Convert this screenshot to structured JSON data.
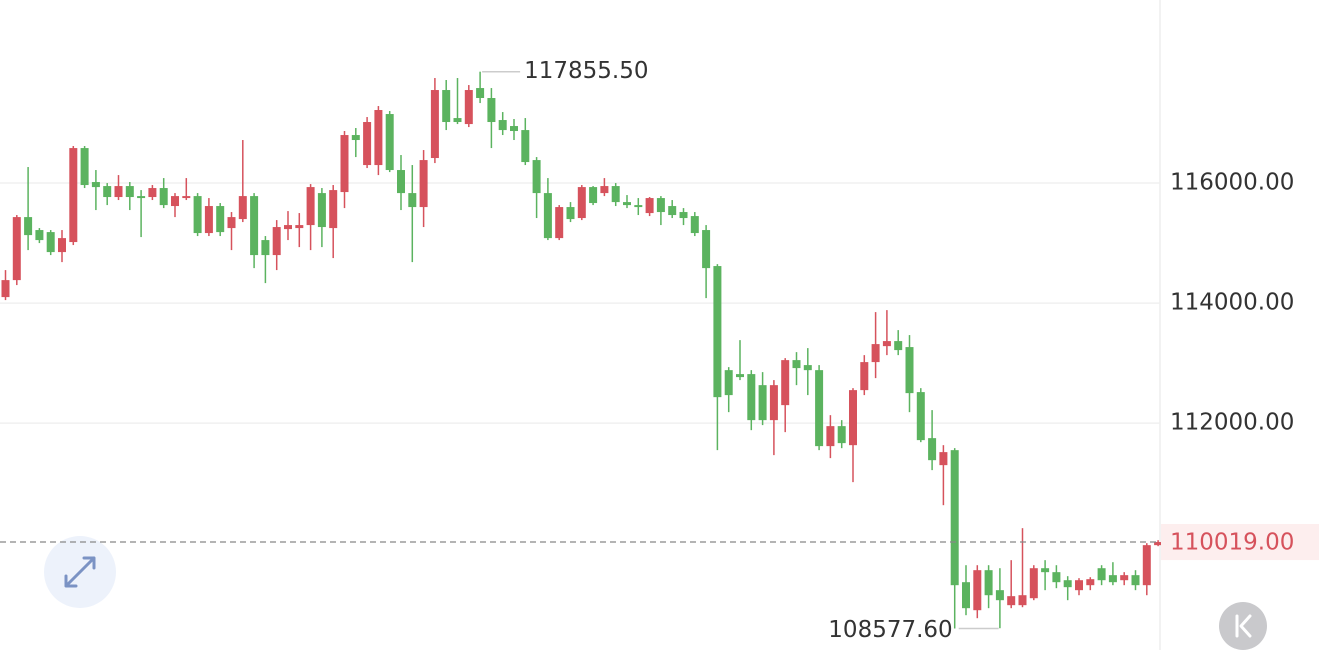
{
  "chart_data": {
    "type": "candlestick",
    "up_color": "#d6525c",
    "down_color": "#5bb35f",
    "ylim": [
      108220,
      119050
    ],
    "yticks": [
      {
        "value": 112000,
        "label": "112000.00"
      },
      {
        "value": 114000,
        "label": "114000.00"
      },
      {
        "value": 116000,
        "label": "116000.00"
      }
    ],
    "grid": true,
    "current_price": {
      "value": 110019,
      "label": "110019.00"
    },
    "high_marker": {
      "value": 117855.5,
      "label": "117855.50"
    },
    "low_marker": {
      "value": 108577.6,
      "label": "108577.60"
    },
    "open": [
      114100,
      114383,
      115433,
      115217,
      115183,
      114850,
      115017,
      116583,
      116017,
      115950,
      115767,
      115950,
      115783,
      115767,
      115917,
      115617,
      115750,
      115783,
      115167,
      115617,
      115250,
      115400,
      115783,
      115050,
      114800,
      115233,
      115250,
      115300,
      115833,
      115250,
      115850,
      116800,
      116300,
      116300,
      117150,
      116217,
      115833,
      115600,
      116417,
      117550,
      117083,
      116983,
      117583,
      117417,
      117050,
      116950,
      116883,
      116383,
      115833,
      115083,
      115600,
      115417,
      115933,
      115833,
      115950,
      115683,
      115633,
      115500,
      115750,
      115617,
      115517,
      115450,
      115217,
      114617,
      112883,
      112817,
      112817,
      112633,
      112050,
      112300,
      113050,
      112967,
      112883,
      111617,
      111950,
      111633,
      112550,
      113017,
      113283,
      113367,
      113267,
      112517,
      111750,
      111300,
      111550,
      109350,
      108883,
      109550,
      109217,
      108967,
      108967,
      109083,
      109583,
      109517,
      109383,
      109217,
      109300,
      109583,
      109467,
      109383,
      109467,
      109300,
      109967
    ],
    "high": [
      114550,
      115467,
      116267,
      115250,
      115217,
      115217,
      116617,
      116617,
      116217,
      116000,
      116133,
      116017,
      115883,
      115967,
      116083,
      115833,
      116083,
      115833,
      115750,
      115667,
      115517,
      116717,
      115833,
      115117,
      115383,
      115533,
      115500,
      115983,
      115917,
      115967,
      116867,
      116917,
      117100,
      117283,
      117200,
      116467,
      116300,
      116550,
      117750,
      117717,
      117750,
      117633,
      117855.5,
      117583,
      117183,
      117067,
      117083,
      116433,
      116083,
      115633,
      115683,
      115967,
      115950,
      116083,
      116000,
      115800,
      115750,
      115767,
      115783,
      115717,
      115583,
      115517,
      115300,
      114650,
      112933,
      113383,
      112883,
      112850,
      112717,
      113083,
      113183,
      113250,
      112967,
      112133,
      112050,
      112583,
      113133,
      113850,
      113883,
      113550,
      113467,
      112583,
      112217,
      111633,
      111583,
      109633,
      109633,
      109633,
      109583,
      109717,
      110250,
      109633,
      109717,
      109633,
      109450,
      109417,
      109433,
      109633,
      109683,
      109517,
      109550,
      110000,
      110050
    ],
    "low": [
      114050,
      114300,
      114883,
      115000,
      114800,
      114683,
      114967,
      115917,
      115550,
      115633,
      115717,
      115550,
      115100,
      115717,
      115583,
      115433,
      115717,
      115117,
      115117,
      115117,
      114883,
      115350,
      114583,
      114333,
      114550,
      115050,
      114933,
      114883,
      114933,
      114750,
      115583,
      116433,
      116250,
      116133,
      116183,
      115550,
      114683,
      115267,
      116333,
      116883,
      116983,
      116933,
      117333,
      116583,
      116800,
      116717,
      116300,
      115417,
      115050,
      115050,
      115350,
      115383,
      115633,
      115783,
      115617,
      115583,
      115467,
      115450,
      115300,
      115417,
      115300,
      115117,
      114083,
      111550,
      112183,
      112717,
      111883,
      111967,
      111467,
      111850,
      112633,
      112467,
      111550,
      111417,
      111583,
      111017,
      112467,
      112750,
      113133,
      113133,
      112183,
      111683,
      111217,
      110633,
      108577.6,
      108800,
      108750,
      108917,
      108583,
      108917,
      108933,
      109050,
      109217,
      109250,
      109050,
      109133,
      109217,
      109300,
      109300,
      109300,
      109217,
      109133,
      109950
    ],
    "close": [
      114383,
      115433,
      115133,
      115050,
      114850,
      115083,
      116583,
      115967,
      115933,
      115767,
      115950,
      115767,
      115750,
      115917,
      115633,
      115783,
      115783,
      115167,
      115617,
      115183,
      115433,
      115783,
      114800,
      114800,
      115267,
      115300,
      115300,
      115933,
      115267,
      115883,
      116800,
      116717,
      117017,
      117217,
      116217,
      115833,
      115600,
      116383,
      117550,
      117017,
      117017,
      117550,
      117417,
      117017,
      116883,
      116867,
      116350,
      115833,
      115083,
      115600,
      115400,
      115933,
      115667,
      115950,
      115683,
      115633,
      115600,
      115750,
      115517,
      115467,
      115417,
      115167,
      114583,
      112433,
      112467,
      112767,
      112050,
      112050,
      112633,
      113050,
      112917,
      112883,
      111617,
      111950,
      111667,
      112550,
      113017,
      113317,
      113367,
      113217,
      112500,
      111717,
      111383,
      111517,
      109300,
      108917,
      109550,
      109133,
      109050,
      109117,
      109133,
      109583,
      109517,
      109350,
      109267,
      109383,
      109400,
      109383,
      109350,
      109467,
      109300,
      109967,
      110019
    ]
  }
}
